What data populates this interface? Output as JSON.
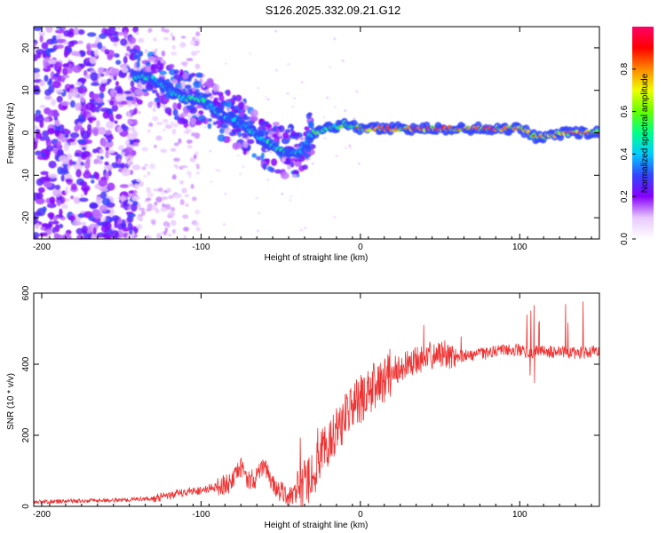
{
  "title": "S126.2025.332.09.21.G12",
  "chart_data": [
    {
      "type": "heatmap",
      "xlabel": "Height of straight line (km)",
      "ylabel": "Frequency (Hz)",
      "xlim": [
        -205,
        150
      ],
      "ylim": [
        -25,
        25
      ],
      "xticks": [
        -200,
        -100,
        0,
        100
      ],
      "yticks": [
        -20,
        -10,
        0,
        10,
        20
      ],
      "colorbar": {
        "label": "Normalized spectral amplitude",
        "range": [
          0.0,
          1.0
        ],
        "ticks": [
          0.0,
          0.2,
          0.4,
          0.6,
          0.8
        ],
        "tick_labels": [
          "0.0",
          "0.2",
          "0.4",
          "0.6",
          "0.8"
        ],
        "colors": [
          "#ffffff",
          "#e8c8ff",
          "#8800ff",
          "#3344ff",
          "#00ccff",
          "#00ff88",
          "#66ff00",
          "#eeff00",
          "#ff8800",
          "#ff0000",
          "#ff0066"
        ]
      },
      "ridge": {
        "x": [
          -140,
          -130,
          -120,
          -110,
          -100,
          -90,
          -80,
          -70,
          -60,
          -50,
          -40,
          -35,
          -30,
          -20,
          -10,
          0,
          20,
          50,
          80,
          100,
          110,
          130,
          150
        ],
        "y": [
          13,
          13,
          10,
          8,
          8,
          5,
          3,
          1,
          -2,
          -4,
          -5,
          -3,
          0,
          1,
          2,
          1,
          1,
          1,
          1,
          1,
          -1,
          0,
          0
        ]
      }
    },
    {
      "type": "line",
      "xlabel": "Height of straight line (km)",
      "ylabel": "SNR (10 * v/v)",
      "xlim": [
        -205,
        150
      ],
      "ylim": [
        0,
        600
      ],
      "xticks": [
        -200,
        -100,
        0,
        100
      ],
      "yticks": [
        0,
        200,
        400,
        600
      ],
      "series": [
        {
          "name": "SNR",
          "color": "#ee3333",
          "x": [
            -205,
            -180,
            -150,
            -130,
            -120,
            -110,
            -100,
            -90,
            -80,
            -75,
            -70,
            -65,
            -60,
            -55,
            -50,
            -45,
            -40,
            -35,
            -30,
            -25,
            -20,
            -15,
            -10,
            -5,
            0,
            10,
            20,
            30,
            40,
            50,
            60,
            70,
            80,
            90,
            100,
            105,
            110,
            120,
            130,
            150
          ],
          "y": [
            12,
            15,
            18,
            22,
            30,
            40,
            45,
            55,
            70,
            110,
            75,
            80,
            120,
            60,
            40,
            30,
            35,
            60,
            90,
            140,
            180,
            220,
            250,
            280,
            300,
            340,
            380,
            400,
            420,
            430,
            420,
            425,
            430,
            440,
            440,
            430,
            435,
            435,
            430,
            435
          ]
        }
      ]
    }
  ]
}
